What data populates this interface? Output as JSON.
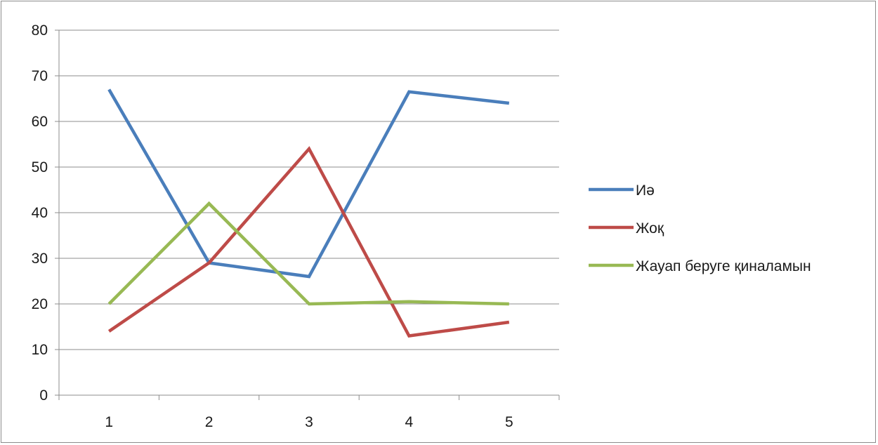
{
  "chart_data": {
    "type": "line",
    "title": "",
    "xlabel": "",
    "ylabel": "",
    "categories": [
      "1",
      "2",
      "3",
      "4",
      "5"
    ],
    "ylim": [
      0,
      80
    ],
    "yticks": [
      0,
      10,
      20,
      30,
      40,
      50,
      60,
      70,
      80
    ],
    "grid": "horizontal",
    "legend_position": "right",
    "series": [
      {
        "name": "Иә",
        "color": "#4a7ebb",
        "values": [
          67,
          29,
          26,
          66.5,
          64
        ]
      },
      {
        "name": "Жоқ",
        "color": "#be4b48",
        "values": [
          14,
          29,
          54,
          13,
          16
        ]
      },
      {
        "name": "Жауап беруге қиналамын",
        "color": "#98b954",
        "values": [
          20,
          42,
          20,
          20.5,
          20
        ]
      }
    ]
  }
}
